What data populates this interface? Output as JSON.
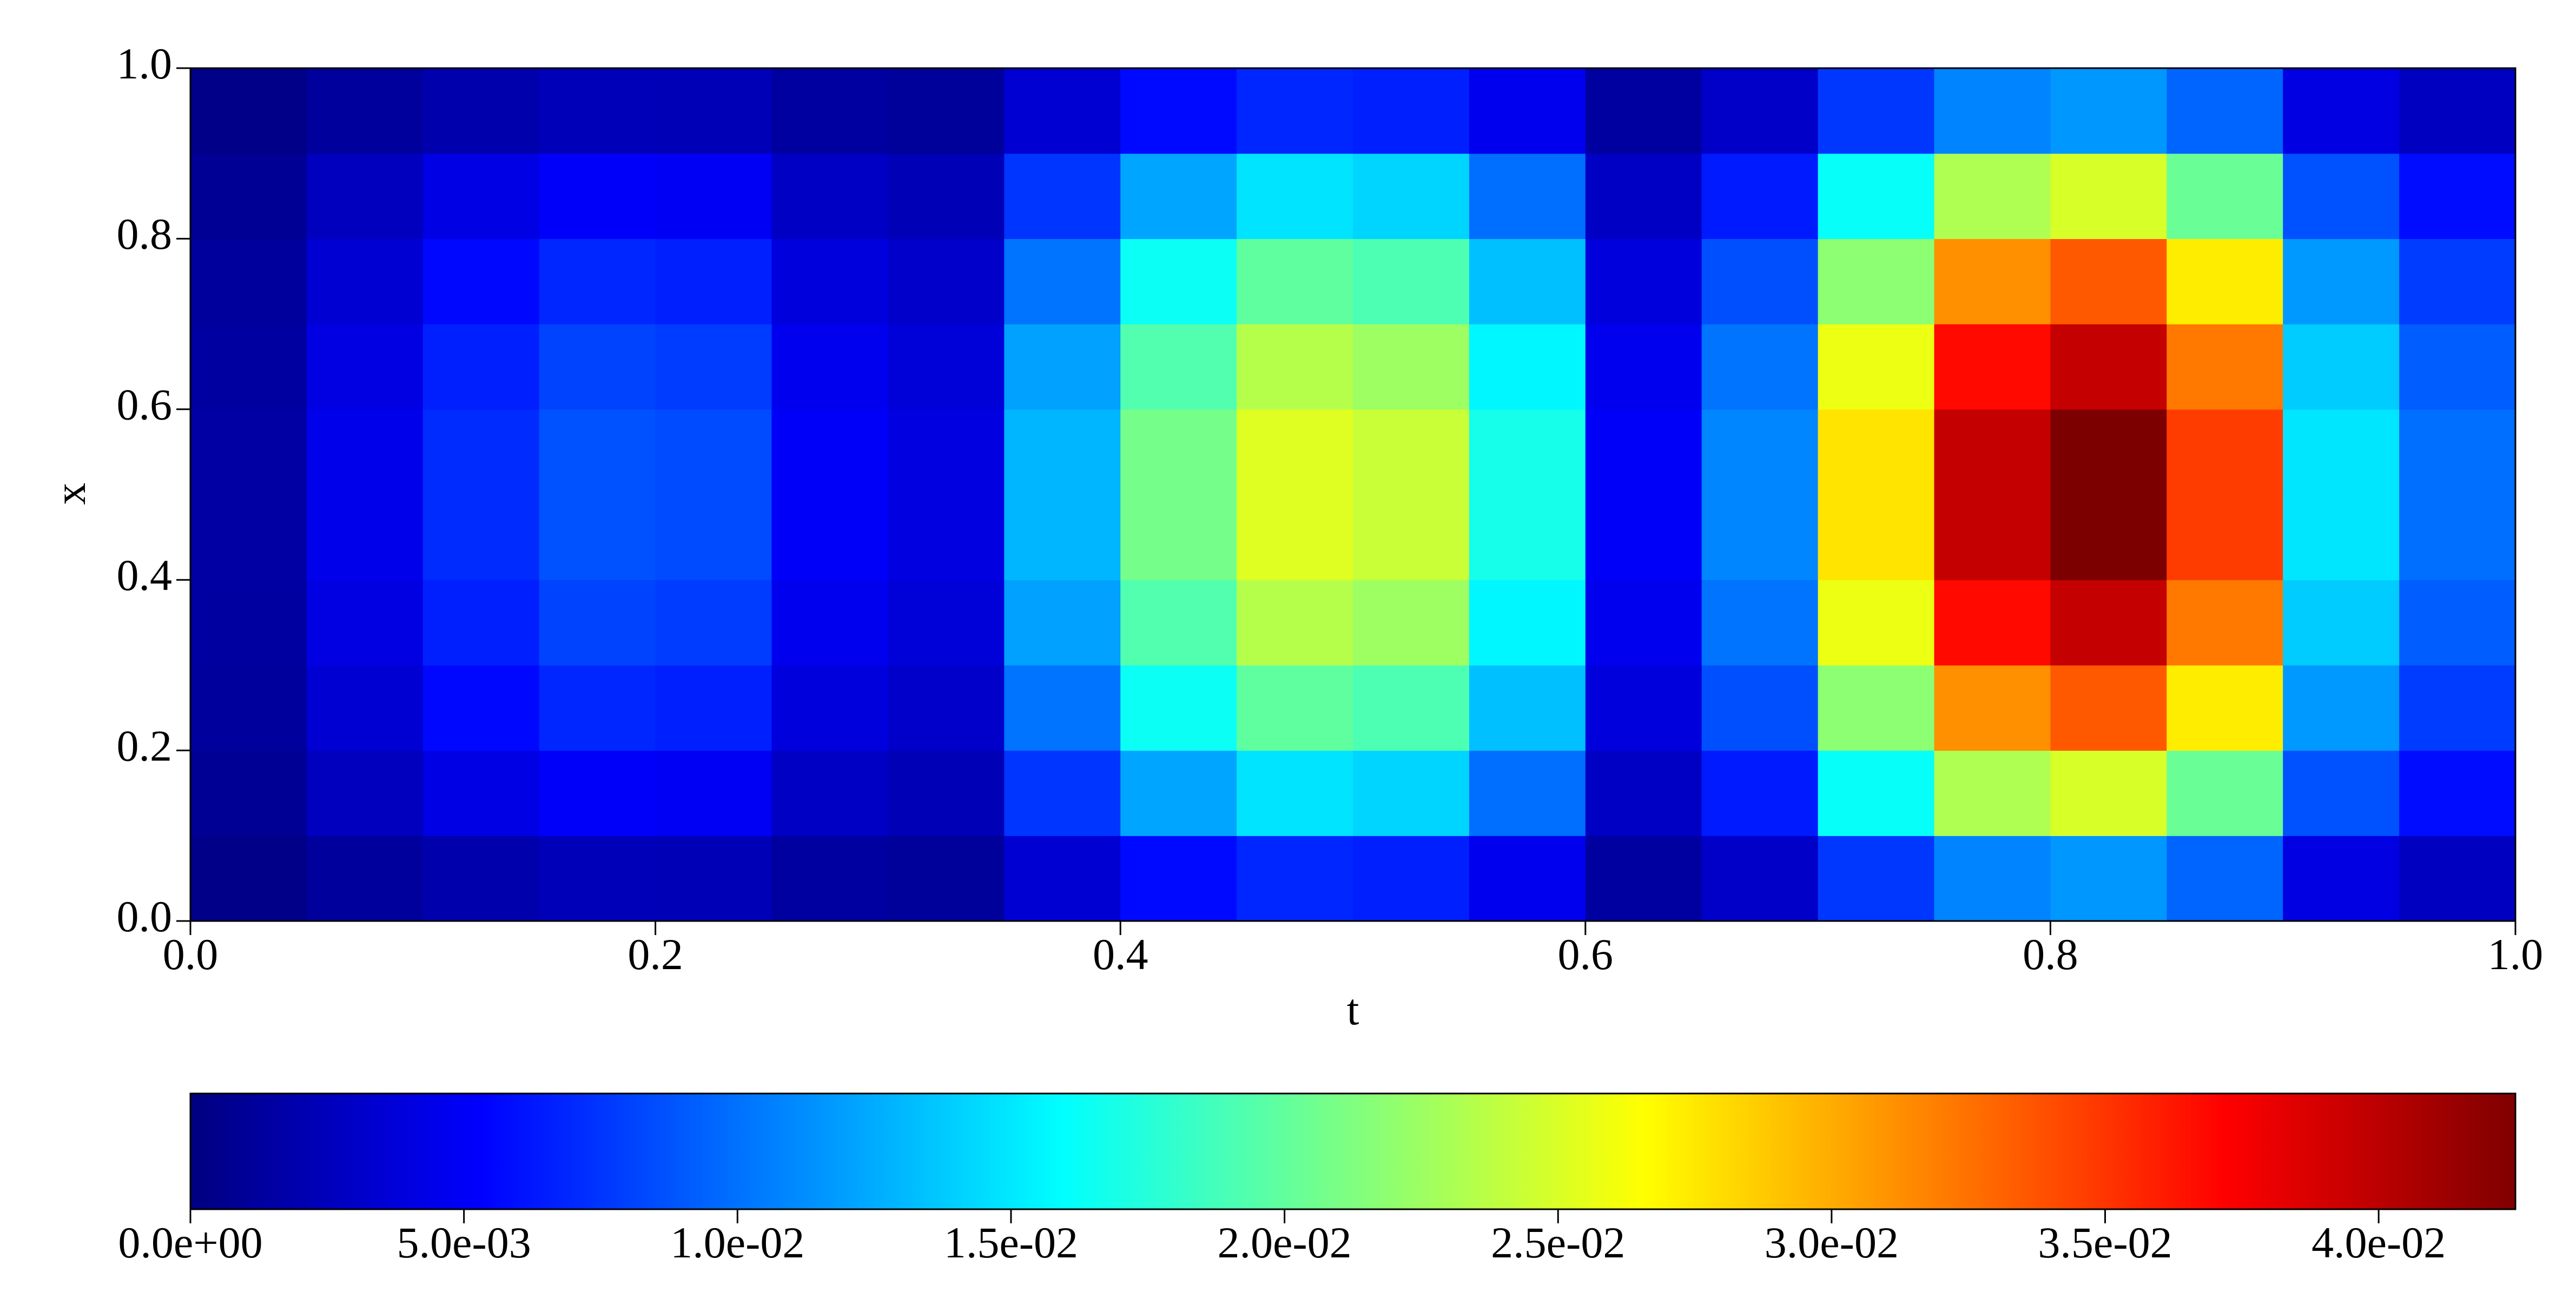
{
  "chart_data": {
    "type": "heatmap",
    "xlabel": "t",
    "ylabel": "x",
    "xlim": [
      0,
      1
    ],
    "ylim": [
      0,
      1
    ],
    "xticks": [
      {
        "value": 0,
        "label": "0.0"
      },
      0.2,
      0.4,
      0.6,
      0.8,
      {
        "value": 1,
        "label": "1.0"
      }
    ],
    "yticks": [
      {
        "value": 0,
        "label": "0.0"
      },
      0.2,
      0.4,
      0.6,
      0.8,
      {
        "value": 1,
        "label": "1.0"
      }
    ],
    "x": [
      0.025,
      0.075,
      0.125,
      0.175,
      0.225,
      0.275,
      0.325,
      0.375,
      0.425,
      0.475,
      0.525,
      0.575,
      0.625,
      0.675,
      0.725,
      0.775,
      0.825,
      0.875,
      0.925,
      0.975
    ],
    "y": [
      0.05,
      0.15,
      0.25,
      0.35,
      0.45,
      0.55,
      0.65,
      0.75,
      0.85,
      0.95
    ],
    "z": [
      [
        0.0004,
        0.0012,
        0.0019,
        0.0024,
        0.0023,
        0.0014,
        0.0011,
        0.0035,
        0.0057,
        0.0069,
        0.0066,
        0.0046,
        0.0014,
        0.003,
        0.0076,
        0.0108,
        0.0116,
        0.0095,
        0.0041,
        0.0027
      ],
      [
        0.0009,
        0.0026,
        0.0042,
        0.0051,
        0.0049,
        0.0029,
        0.0023,
        0.0075,
        0.0122,
        0.0148,
        0.0142,
        0.0099,
        0.0029,
        0.0064,
        0.0162,
        0.0232,
        0.0249,
        0.0203,
        0.0087,
        0.0058
      ],
      [
        0.0012,
        0.0035,
        0.0056,
        0.0069,
        0.0066,
        0.0039,
        0.0031,
        0.0101,
        0.0164,
        0.0199,
        0.0191,
        0.0133,
        0.0039,
        0.0086,
        0.0218,
        0.0312,
        0.0335,
        0.0273,
        0.0117,
        0.0078
      ],
      [
        0.0014,
        0.0041,
        0.0066,
        0.0081,
        0.0078,
        0.0046,
        0.0037,
        0.012,
        0.0193,
        0.0235,
        0.0225,
        0.0156,
        0.0046,
        0.0101,
        0.0258,
        0.0368,
        0.0396,
        0.0322,
        0.0138,
        0.0092
      ],
      [
        0.0015,
        0.0045,
        0.0071,
        0.0087,
        0.0084,
        0.005,
        0.004,
        0.0129,
        0.0208,
        0.0252,
        0.0243,
        0.0168,
        0.005,
        0.0109,
        0.0277,
        0.0396,
        0.0426,
        0.0347,
        0.0149,
        0.0099
      ],
      [
        0.0015,
        0.0045,
        0.0071,
        0.0087,
        0.0084,
        0.005,
        0.004,
        0.0129,
        0.0208,
        0.0252,
        0.0243,
        0.0168,
        0.005,
        0.0109,
        0.0277,
        0.0396,
        0.0426,
        0.0347,
        0.0149,
        0.0099
      ],
      [
        0.0014,
        0.0041,
        0.0066,
        0.0081,
        0.0078,
        0.0046,
        0.0037,
        0.012,
        0.0193,
        0.0235,
        0.0225,
        0.0156,
        0.0046,
        0.0101,
        0.0258,
        0.0368,
        0.0396,
        0.0322,
        0.0138,
        0.0092
      ],
      [
        0.0012,
        0.0035,
        0.0056,
        0.0069,
        0.0066,
        0.0039,
        0.0031,
        0.0101,
        0.0164,
        0.0199,
        0.0191,
        0.0133,
        0.0039,
        0.0086,
        0.0218,
        0.0312,
        0.0335,
        0.0273,
        0.0117,
        0.0078
      ],
      [
        0.0009,
        0.0026,
        0.0042,
        0.0051,
        0.0049,
        0.0029,
        0.0023,
        0.0075,
        0.0122,
        0.0148,
        0.0142,
        0.0099,
        0.0029,
        0.0064,
        0.0162,
        0.0232,
        0.0249,
        0.0203,
        0.0087,
        0.0058
      ],
      [
        0.0004,
        0.0012,
        0.0019,
        0.0024,
        0.0023,
        0.0014,
        0.0011,
        0.0035,
        0.0057,
        0.0069,
        0.0066,
        0.0046,
        0.0014,
        0.003,
        0.0076,
        0.0108,
        0.0116,
        0.0095,
        0.0041,
        0.0027
      ]
    ],
    "colormap": "jet",
    "colorbar": {
      "location": "bottom",
      "clim": [
        0,
        0.0425
      ],
      "ticks": [
        {
          "value": 0,
          "label": "0.0e+00"
        },
        {
          "value": 0.005,
          "label": "5.0e-03"
        },
        {
          "value": 0.01,
          "label": "1.0e-02"
        },
        {
          "value": 0.015,
          "label": "1.5e-02"
        },
        {
          "value": 0.02,
          "label": "2.0e-02"
        },
        {
          "value": 0.025,
          "label": "2.5e-02"
        },
        {
          "value": 0.03,
          "label": "3.0e-02"
        },
        {
          "value": 0.035,
          "label": "3.5e-02"
        },
        {
          "value": 0.04,
          "label": "4.0e-02"
        }
      ]
    }
  }
}
